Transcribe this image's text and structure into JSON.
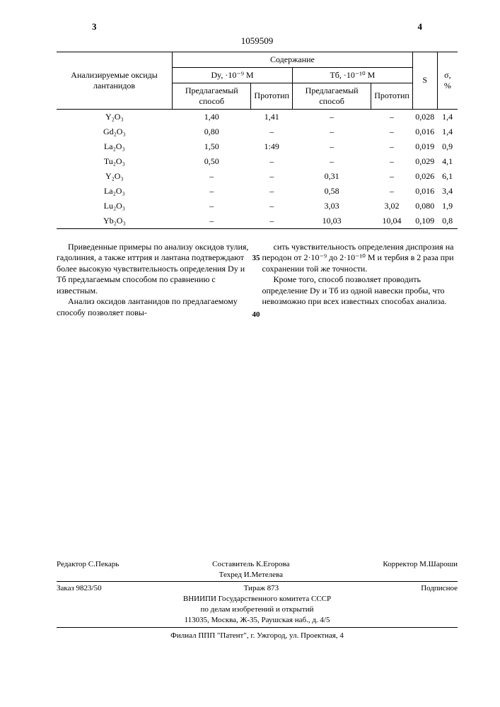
{
  "page_left": "3",
  "page_right": "4",
  "doc_id": "1059509",
  "table": {
    "h_analyzed": "Анализируемые оксиды лантанидов",
    "h_content": "Содержание",
    "h_dy": "Dy, ·10⁻⁹ М",
    "h_tb": "Tб, ·10⁻¹⁰ М",
    "h_s": "S",
    "h_sigma": "σ, %",
    "h_proposed": "Предлагаемый способ",
    "h_proto": "Прототип",
    "rows": [
      {
        "ox": "Y₂O₃",
        "dy_p": "1,40",
        "dy_r": "1,41",
        "tb_p": "–",
        "tb_r": "–",
        "s": "0,028",
        "sig": "1,4"
      },
      {
        "ox": "Gd₂O₃",
        "dy_p": "0,80",
        "dy_r": "–",
        "tb_p": "–",
        "tb_r": "–",
        "s": "0,016",
        "sig": "1,4"
      },
      {
        "ox": "La₂O₃",
        "dy_p": "1,50",
        "dy_r": "1:49",
        "tb_p": "–",
        "tb_r": "–",
        "s": "0,019",
        "sig": "0,9"
      },
      {
        "ox": "Tu₂O₃",
        "dy_p": "0,50",
        "dy_r": "–",
        "tb_p": "–",
        "tb_r": "–",
        "s": "0,029",
        "sig": "4,1"
      },
      {
        "ox": "Y₂O₃",
        "dy_p": "–",
        "dy_r": "–",
        "tb_p": "0,31",
        "tb_r": "–",
        "s": "0,026",
        "sig": "6,1"
      },
      {
        "ox": "La₂O₃",
        "dy_p": "–",
        "dy_r": "–",
        "tb_p": "0,58",
        "tb_r": "–",
        "s": "0,016",
        "sig": "3,4"
      },
      {
        "ox": "Lu₂O₃",
        "dy_p": "–",
        "dy_r": "–",
        "tb_p": "3,03",
        "tb_r": "3,02",
        "s": "0,080",
        "sig": "1,9"
      },
      {
        "ox": "Yb₂O₃",
        "dy_p": "–",
        "dy_r": "–",
        "tb_p": "10,03",
        "tb_r": "10,04",
        "s": "0,109",
        "sig": "0,8"
      }
    ]
  },
  "text": {
    "left_p1": "Приведенные примеры по анализу оксидов тулия, гадолиния, а также иттрия и лантана подтверждают более высокую чувствительность определения Dy и Tб предлагаемым способом по сравнению с известным.",
    "left_p2": "Анализ оксидов лантанидов по предлагаемому способу позволяет повы-",
    "right_p1": "сить чувствительность определения диспрозия на перодон от 2·10⁻⁹ до 2·10⁻¹⁰ М и тербия в 2 раза при сохранении той же точности.",
    "right_p2": "Кроме того, способ позволяет проводить определение Dy и Tб из одной навески пробы, что невозможно при всех известных способах анализа."
  },
  "colophon": {
    "compiler": "Составитель К.Егорова",
    "editor": "Редактор С.Пекарь",
    "techred": "Техред И.Метелева",
    "corrector": "Корректор М.Шароши",
    "order": "Заказ 9823/50",
    "tirazh": "Тираж 873",
    "subscr": "Подписное",
    "org1": "ВНИИПИ Государственного комитета СССР",
    "org2": "по делам изобретений и открытий",
    "addr": "113035, Москва, Ж-35, Раушская наб., д. 4/5",
    "branch": "Филиал ППП \"Патент\", г. Ужгород, ул. Проектная, 4"
  }
}
